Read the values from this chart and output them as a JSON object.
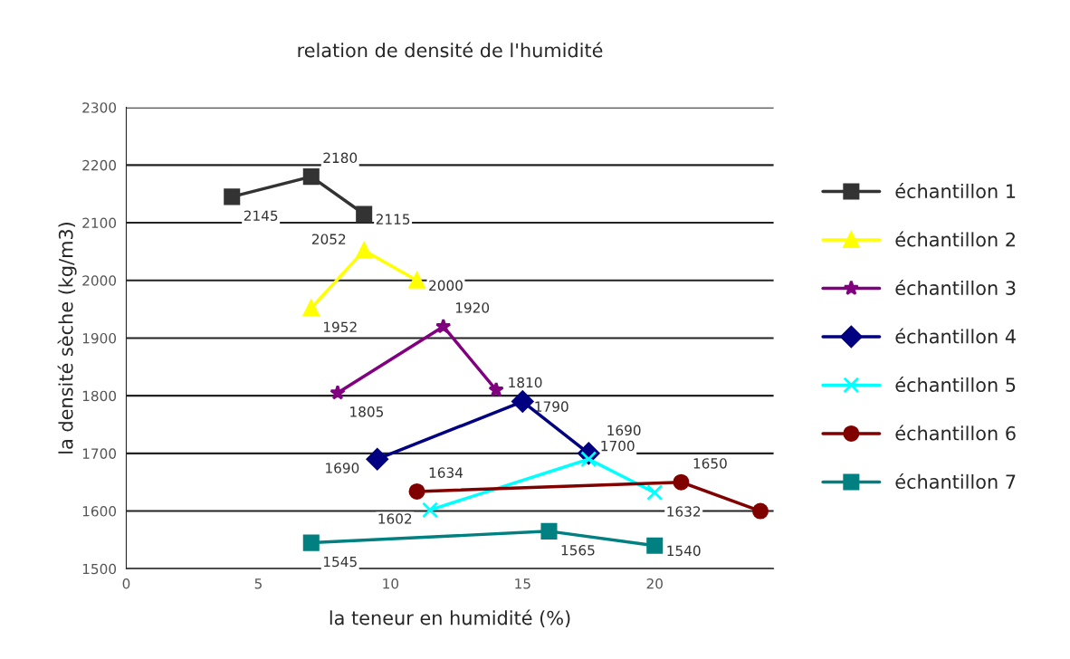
{
  "chart_data": {
    "type": "line",
    "title": "relation de densité de l'humidité",
    "xlabel": "la teneur en humidité (%)",
    "ylabel": "la densité sèche (kg/m3)",
    "xlim": [
      0,
      24.5
    ],
    "xticks": [
      0,
      5,
      10,
      15,
      20
    ],
    "ylim": [
      1500,
      2300
    ],
    "yticks": [
      1500,
      1600,
      1700,
      1800,
      1900,
      2000,
      2100,
      2200,
      2300
    ],
    "grid": "y",
    "legend": "right",
    "series": [
      {
        "name": "échantillon 1",
        "color": "#333333",
        "marker": "square",
        "x": [
          4,
          7,
          9
        ],
        "values": [
          2145,
          2180,
          2115
        ],
        "value_labels": [
          "2145",
          "2180",
          "2115"
        ]
      },
      {
        "name": "échantillon 2",
        "color": "#ffff00",
        "marker": "triangle",
        "x": [
          7,
          9,
          11
        ],
        "values": [
          1952,
          2052,
          2000
        ],
        "value_labels": [
          "1952",
          "2052",
          "2000"
        ]
      },
      {
        "name": "échantillon 3",
        "color": "#800080",
        "marker": "star",
        "x": [
          8,
          12,
          14
        ],
        "values": [
          1805,
          1920,
          1810
        ],
        "value_labels": [
          "1805",
          "1920",
          "1810"
        ]
      },
      {
        "name": "échantillon 4",
        "color": "#000080",
        "marker": "diamond",
        "x": [
          9.5,
          15,
          17.5
        ],
        "values": [
          1690,
          1790,
          1700
        ],
        "value_labels": [
          "1690",
          "1790",
          "1700"
        ]
      },
      {
        "name": "échantillon 5",
        "color": "#00ffff",
        "marker": "cross",
        "x": [
          11.5,
          17.5,
          20
        ],
        "values": [
          1602,
          1690,
          1632
        ],
        "value_labels": [
          "1602",
          "1690",
          "1632"
        ]
      },
      {
        "name": "échantillon 6",
        "color": "#800000",
        "marker": "circle",
        "x": [
          11,
          21,
          24
        ],
        "values": [
          1634,
          1650,
          1600
        ],
        "value_labels": [
          "1634",
          "1650",
          null
        ]
      },
      {
        "name": "échantillon 7",
        "color": "#008080",
        "marker": "square",
        "x": [
          7,
          16,
          20
        ],
        "values": [
          1545,
          1565,
          1540
        ],
        "value_labels": [
          "1545",
          "1565",
          "1540"
        ]
      }
    ]
  }
}
